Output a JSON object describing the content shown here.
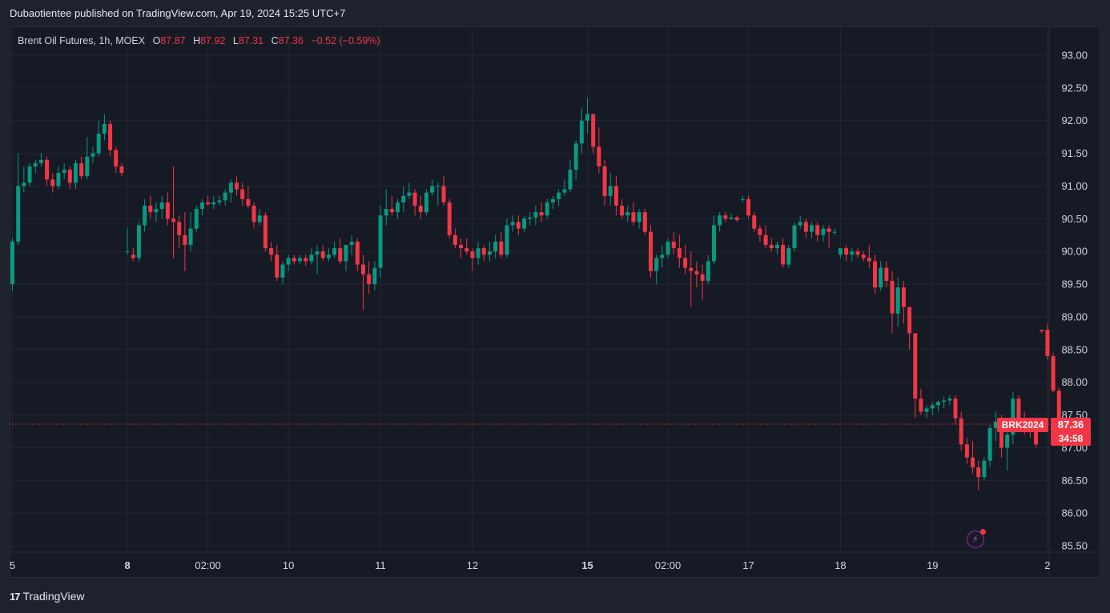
{
  "header": {
    "publish_text": "Dubaotientee published on TradingView.com, Apr 19, 2024 15:25 UTC+7"
  },
  "legend": {
    "name": "Brent Oil Futures, 1h, MOEX",
    "o_key": "O",
    "o_val": "87.87",
    "h_key": "H",
    "h_val": "87.92",
    "l_key": "L",
    "l_val": "87.31",
    "c_key": "C",
    "c_val": "87.36",
    "change": "−0.52 (−0.59%)"
  },
  "price_tags": {
    "symbol": "BRK2024",
    "last": "87.36",
    "countdown": "34:58"
  },
  "brand": {
    "logo": "17",
    "name": "TradingView"
  },
  "icons": {
    "alert": "lightning-alert-icon"
  },
  "colors": {
    "up": "#089981",
    "down": "#f23645",
    "bg": "#161a25",
    "grid": "#232733"
  },
  "chart_data": {
    "type": "candlestick",
    "last_price": 87.36,
    "y_ticks": [
      "93.00",
      "92.50",
      "92.00",
      "91.50",
      "91.00",
      "90.50",
      "90.00",
      "89.50",
      "89.00",
      "88.50",
      "88.00",
      "87.50",
      "87.00",
      "86.50",
      "86.00",
      "85.50"
    ],
    "x_ticks": [
      {
        "label": "5",
        "bold": false,
        "bar": 0
      },
      {
        "label": "8",
        "bold": true,
        "bar": 20
      },
      {
        "label": "02:00",
        "bold": false,
        "bar": 34
      },
      {
        "label": "10",
        "bold": false,
        "bar": 48
      },
      {
        "label": "11",
        "bold": false,
        "bar": 64
      },
      {
        "label": "12",
        "bold": false,
        "bar": 80
      },
      {
        "label": "15",
        "bold": true,
        "bar": 100
      },
      {
        "label": "02:00",
        "bold": false,
        "bar": 114
      },
      {
        "label": "17",
        "bold": false,
        "bar": 128
      },
      {
        "label": "18",
        "bold": false,
        "bar": 144
      },
      {
        "label": "19",
        "bold": false,
        "bar": 160
      },
      {
        "label": "2",
        "bold": false,
        "bar": 180
      }
    ],
    "ohlc": [
      [
        89.5,
        90.2,
        89.4,
        90.15
      ],
      [
        90.15,
        91.5,
        90.1,
        91.0
      ],
      [
        91.0,
        91.3,
        90.9,
        91.05
      ],
      [
        91.05,
        91.35,
        91.0,
        91.3
      ],
      [
        91.3,
        91.4,
        91.2,
        91.35
      ],
      [
        91.35,
        91.5,
        91.3,
        91.4
      ],
      [
        91.4,
        91.45,
        91.0,
        91.1
      ],
      [
        91.1,
        91.2,
        90.9,
        91.0
      ],
      [
        91.0,
        91.3,
        90.95,
        91.2
      ],
      [
        91.2,
        91.35,
        91.1,
        91.25
      ],
      [
        91.25,
        91.3,
        90.95,
        91.05
      ],
      [
        91.05,
        91.4,
        90.95,
        91.35
      ],
      [
        91.35,
        91.45,
        91.1,
        91.15
      ],
      [
        91.15,
        91.75,
        91.1,
        91.45
      ],
      [
        91.45,
        91.6,
        91.35,
        91.5
      ],
      [
        91.5,
        92.0,
        91.45,
        91.8
      ],
      [
        91.8,
        92.1,
        91.7,
        91.95
      ],
      [
        91.95,
        92.0,
        91.45,
        91.55
      ],
      [
        91.55,
        91.6,
        91.2,
        91.3
      ],
      [
        91.3,
        91.35,
        91.15,
        91.2
      ],
      [
        90.0,
        90.35,
        89.95,
        90.0
      ],
      [
        89.95,
        90.05,
        89.85,
        89.9
      ],
      [
        89.9,
        90.45,
        89.85,
        90.4
      ],
      [
        90.4,
        90.8,
        90.3,
        90.7
      ],
      [
        90.7,
        90.85,
        90.5,
        90.6
      ],
      [
        90.6,
        90.75,
        90.45,
        90.65
      ],
      [
        90.65,
        90.85,
        90.5,
        90.75
      ],
      [
        90.75,
        90.9,
        90.4,
        90.5
      ],
      [
        90.5,
        91.3,
        89.9,
        90.45
      ],
      [
        90.45,
        90.55,
        90.05,
        90.25
      ],
      [
        90.25,
        90.6,
        89.7,
        90.1
      ],
      [
        90.1,
        90.6,
        90.0,
        90.35
      ],
      [
        90.35,
        90.7,
        90.3,
        90.65
      ],
      [
        90.65,
        90.8,
        90.55,
        90.75
      ],
      [
        90.75,
        90.85,
        90.7,
        90.72
      ],
      [
        90.72,
        90.85,
        90.65,
        90.75
      ],
      [
        90.75,
        90.85,
        90.7,
        90.78
      ],
      [
        90.78,
        90.95,
        90.7,
        90.9
      ],
      [
        90.9,
        91.1,
        90.75,
        91.05
      ],
      [
        91.05,
        91.15,
        90.85,
        90.95
      ],
      [
        90.95,
        91.05,
        90.7,
        90.8
      ],
      [
        90.8,
        91.0,
        90.65,
        90.7
      ],
      [
        90.7,
        90.75,
        90.35,
        90.45
      ],
      [
        90.45,
        90.65,
        90.4,
        90.55
      ],
      [
        90.55,
        90.6,
        90.0,
        90.05
      ],
      [
        90.05,
        90.15,
        89.85,
        89.95
      ],
      [
        89.95,
        90.1,
        89.55,
        89.6
      ],
      [
        89.6,
        89.85,
        89.5,
        89.8
      ],
      [
        89.8,
        89.95,
        89.7,
        89.9
      ],
      [
        89.9,
        89.95,
        89.8,
        89.85
      ],
      [
        89.85,
        89.95,
        89.8,
        89.9
      ],
      [
        89.9,
        89.95,
        89.78,
        89.85
      ],
      [
        89.85,
        90.05,
        89.8,
        89.95
      ],
      [
        89.95,
        90.1,
        89.65,
        90.0
      ],
      [
        90.0,
        90.1,
        89.85,
        89.9
      ],
      [
        89.9,
        90.05,
        89.85,
        89.95
      ],
      [
        89.95,
        90.15,
        89.9,
        90.05
      ],
      [
        90.05,
        90.2,
        89.8,
        89.85
      ],
      [
        89.85,
        90.1,
        89.7,
        90.1
      ],
      [
        90.1,
        90.25,
        89.95,
        90.15
      ],
      [
        90.15,
        90.2,
        89.7,
        89.8
      ],
      [
        89.8,
        89.95,
        89.1,
        89.65
      ],
      [
        89.65,
        89.85,
        89.35,
        89.5
      ],
      [
        89.5,
        89.85,
        89.4,
        89.75
      ],
      [
        89.75,
        90.7,
        89.6,
        90.55
      ],
      [
        90.55,
        90.95,
        90.4,
        90.65
      ],
      [
        90.65,
        90.85,
        90.55,
        90.6
      ],
      [
        90.6,
        90.8,
        90.5,
        90.75
      ],
      [
        90.75,
        91.0,
        90.6,
        90.85
      ],
      [
        90.85,
        91.05,
        90.8,
        90.9
      ],
      [
        90.9,
        90.95,
        90.55,
        90.7
      ],
      [
        90.7,
        90.85,
        90.5,
        90.6
      ],
      [
        90.6,
        90.95,
        90.55,
        90.9
      ],
      [
        90.9,
        91.1,
        90.85,
        91.0
      ],
      [
        91.0,
        91.05,
        90.7,
        91.0
      ],
      [
        91.0,
        91.15,
        90.7,
        90.75
      ],
      [
        90.75,
        90.8,
        90.2,
        90.25
      ],
      [
        90.25,
        90.35,
        90.05,
        90.1
      ],
      [
        90.1,
        90.2,
        89.9,
        90.05
      ],
      [
        90.05,
        90.2,
        89.95,
        90.0
      ],
      [
        90.0,
        90.05,
        89.7,
        89.9
      ],
      [
        89.9,
        90.15,
        89.8,
        90.05
      ],
      [
        90.05,
        90.1,
        89.85,
        89.95
      ],
      [
        89.95,
        90.15,
        89.85,
        90.0
      ],
      [
        90.0,
        90.25,
        89.9,
        90.15
      ],
      [
        90.15,
        90.3,
        89.9,
        89.95
      ],
      [
        89.95,
        90.5,
        89.9,
        90.4
      ],
      [
        90.4,
        90.55,
        90.3,
        90.45
      ],
      [
        90.45,
        90.55,
        90.25,
        90.35
      ],
      [
        90.35,
        90.55,
        90.3,
        90.5
      ],
      [
        90.5,
        90.6,
        90.4,
        90.52
      ],
      [
        90.52,
        90.7,
        90.4,
        90.6
      ],
      [
        90.6,
        90.75,
        90.45,
        90.55
      ],
      [
        90.55,
        90.8,
        90.5,
        90.75
      ],
      [
        90.75,
        90.85,
        90.65,
        90.8
      ],
      [
        90.8,
        90.95,
        90.7,
        90.9
      ],
      [
        90.9,
        91.1,
        90.85,
        90.95
      ],
      [
        90.95,
        91.4,
        90.9,
        91.25
      ],
      [
        91.25,
        91.7,
        91.1,
        91.65
      ],
      [
        91.65,
        92.2,
        91.5,
        92.0
      ],
      [
        92.0,
        92.35,
        91.8,
        92.1
      ],
      [
        92.1,
        92.1,
        91.5,
        91.6
      ],
      [
        91.6,
        91.9,
        91.2,
        91.3
      ],
      [
        91.3,
        91.4,
        90.7,
        90.85
      ],
      [
        90.85,
        91.2,
        90.7,
        91.0
      ],
      [
        91.0,
        91.15,
        90.55,
        90.7
      ],
      [
        90.7,
        90.8,
        90.5,
        90.55
      ],
      [
        90.55,
        90.7,
        90.45,
        90.6
      ],
      [
        90.6,
        90.75,
        90.4,
        90.45
      ],
      [
        90.45,
        90.65,
        90.35,
        90.6
      ],
      [
        90.6,
        90.65,
        90.25,
        90.3
      ],
      [
        90.3,
        90.4,
        89.6,
        89.7
      ],
      [
        89.7,
        89.95,
        89.5,
        89.9
      ],
      [
        89.9,
        90.1,
        89.75,
        89.95
      ],
      [
        89.95,
        90.2,
        89.9,
        90.15
      ],
      [
        90.15,
        90.3,
        89.95,
        90.05
      ],
      [
        90.05,
        90.25,
        89.75,
        89.9
      ],
      [
        89.9,
        90.1,
        89.65,
        89.75
      ],
      [
        89.75,
        90.0,
        89.15,
        89.7
      ],
      [
        89.7,
        89.85,
        89.45,
        89.65
      ],
      [
        89.65,
        89.8,
        89.25,
        89.55
      ],
      [
        89.55,
        89.95,
        89.5,
        89.85
      ],
      [
        89.85,
        90.55,
        89.8,
        90.4
      ],
      [
        90.4,
        90.6,
        90.3,
        90.55
      ],
      [
        90.55,
        90.6,
        90.45,
        90.5
      ],
      [
        90.5,
        90.58,
        90.48,
        90.52
      ],
      [
        90.52,
        90.55,
        90.45,
        90.48
      ],
      [
        90.8,
        90.85,
        90.75,
        90.8
      ],
      [
        90.8,
        90.85,
        90.5,
        90.55
      ],
      [
        90.55,
        90.6,
        90.3,
        90.35
      ],
      [
        90.35,
        90.4,
        90.15,
        90.25
      ],
      [
        90.25,
        90.4,
        90.05,
        90.1
      ],
      [
        90.1,
        90.2,
        90.0,
        90.05
      ],
      [
        90.05,
        90.15,
        89.95,
        90.1
      ],
      [
        90.1,
        90.2,
        89.75,
        89.8
      ],
      [
        89.8,
        90.1,
        89.75,
        90.05
      ],
      [
        90.05,
        90.45,
        90.0,
        90.4
      ],
      [
        90.4,
        90.55,
        90.35,
        90.45
      ],
      [
        90.45,
        90.5,
        90.2,
        90.3
      ],
      [
        90.3,
        90.45,
        90.2,
        90.4
      ],
      [
        90.4,
        90.45,
        90.15,
        90.25
      ],
      [
        90.25,
        90.4,
        90.15,
        90.35
      ],
      [
        90.35,
        90.4,
        90.05,
        90.3
      ],
      [
        90.3,
        90.35,
        90.25,
        90.3
      ],
      [
        89.95,
        90.05,
        89.9,
        90.05
      ],
      [
        90.05,
        90.1,
        89.85,
        89.95
      ],
      [
        89.95,
        90.05,
        89.85,
        90.0
      ],
      [
        90.0,
        90.05,
        89.9,
        89.95
      ],
      [
        89.95,
        90.0,
        89.85,
        89.9
      ],
      [
        89.9,
        90.1,
        89.75,
        89.85
      ],
      [
        89.85,
        89.95,
        89.35,
        89.45
      ],
      [
        89.45,
        89.85,
        89.4,
        89.75
      ],
      [
        89.75,
        89.85,
        89.45,
        89.55
      ],
      [
        89.55,
        89.7,
        88.75,
        89.05
      ],
      [
        89.05,
        89.6,
        88.85,
        89.45
      ],
      [
        89.45,
        89.55,
        88.9,
        89.15
      ],
      [
        89.15,
        89.15,
        88.5,
        88.75
      ],
      [
        88.75,
        88.75,
        87.45,
        87.75
      ],
      [
        87.75,
        87.9,
        87.5,
        87.55
      ],
      [
        87.55,
        87.65,
        87.45,
        87.6
      ],
      [
        87.6,
        87.7,
        87.5,
        87.65
      ],
      [
        87.65,
        87.72,
        87.55,
        87.7
      ],
      [
        87.7,
        87.78,
        87.6,
        87.72
      ],
      [
        87.72,
        87.8,
        87.65,
        87.75
      ],
      [
        87.75,
        87.8,
        87.35,
        87.45
      ],
      [
        87.45,
        87.55,
        86.95,
        87.05
      ],
      [
        87.05,
        87.15,
        86.75,
        86.85
      ],
      [
        86.85,
        87.1,
        86.6,
        86.7
      ],
      [
        86.7,
        86.8,
        86.35,
        86.55
      ],
      [
        86.55,
        86.85,
        86.5,
        86.8
      ],
      [
        86.8,
        87.35,
        86.7,
        87.3
      ],
      [
        87.3,
        87.55,
        87.1,
        87.4
      ],
      [
        87.4,
        87.5,
        86.85,
        87.0
      ],
      [
        87.0,
        87.35,
        86.65,
        87.2
      ],
      [
        87.2,
        87.85,
        87.05,
        87.75
      ],
      [
        87.75,
        87.8,
        87.35,
        87.45
      ],
      [
        87.45,
        87.55,
        87.2,
        87.3
      ],
      [
        87.3,
        87.35,
        87.15,
        87.25
      ],
      [
        87.25,
        87.3,
        87.0,
        87.05
      ],
      [
        88.8,
        88.8,
        88.75,
        88.78
      ],
      [
        88.8,
        88.9,
        88.35,
        88.4
      ],
      [
        88.4,
        88.45,
        87.85,
        87.87
      ],
      [
        87.87,
        87.92,
        87.31,
        87.36
      ]
    ]
  }
}
